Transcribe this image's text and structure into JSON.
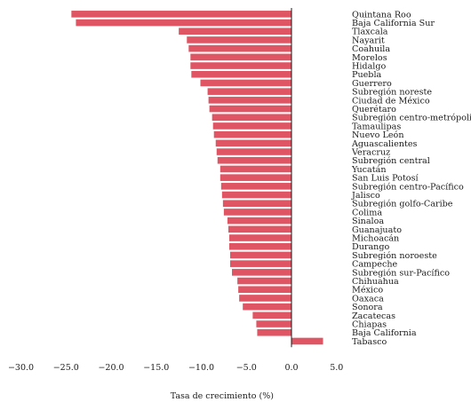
{
  "chart_data": {
    "type": "bar",
    "orientation": "horizontal",
    "title": "",
    "xlabel": "Tasa de crecimiento (%)",
    "ylabel": "",
    "xlim": [
      -30,
      5
    ],
    "x_ticks": [
      "−30.0",
      "−25.0",
      "−20.0",
      "−15.0",
      "−10.0",
      "−5.0",
      "0.0",
      "5.0"
    ],
    "x_tick_values": [
      -30,
      -25,
      -20,
      -15,
      -10,
      -5,
      0,
      5
    ],
    "bar_color": "#e05563",
    "grid": false,
    "categories": [
      "Quintana Roo",
      "Baja California Sur",
      "Tlaxcala",
      "Nayarit",
      "Coahuila",
      "Morelos",
      "Hidalgo",
      "Puebla",
      "Guerrero",
      "Subregión noreste",
      "Ciudad de México",
      "Querétaro",
      "Subregión centro-metrópolis",
      "Tamaulipas",
      "Nuevo León",
      "Aguascalientes",
      "Veracruz",
      "Subregión central",
      "Yucatán",
      "San Luis Potosí",
      "Subregión centro-Pacífico",
      "Jalisco",
      "Subregión golfo-Caribe",
      "Colima",
      "Sinaloa",
      "Guanajuato",
      "Michoacán",
      "Durango",
      "Subregión noroeste",
      "Campeche",
      "Subregión sur-Pacífico",
      "Chihuahua",
      "México",
      "Oaxaca",
      "Sonora",
      "Zacatecas",
      "Chiapas",
      "Baja California",
      "Tabasco"
    ],
    "values": [
      -24.4,
      -23.9,
      -12.5,
      -11.6,
      -11.4,
      -11.2,
      -11.2,
      -11.1,
      -10.1,
      -9.3,
      -9.2,
      -9.1,
      -8.8,
      -8.7,
      -8.6,
      -8.4,
      -8.3,
      -8.2,
      -7.9,
      -7.9,
      -7.8,
      -7.7,
      -7.6,
      -7.5,
      -7.1,
      -7.0,
      -6.9,
      -6.9,
      -6.8,
      -6.8,
      -6.6,
      -6.0,
      -5.9,
      -5.8,
      -5.4,
      -4.3,
      -3.9,
      -3.8,
      3.5
    ]
  }
}
